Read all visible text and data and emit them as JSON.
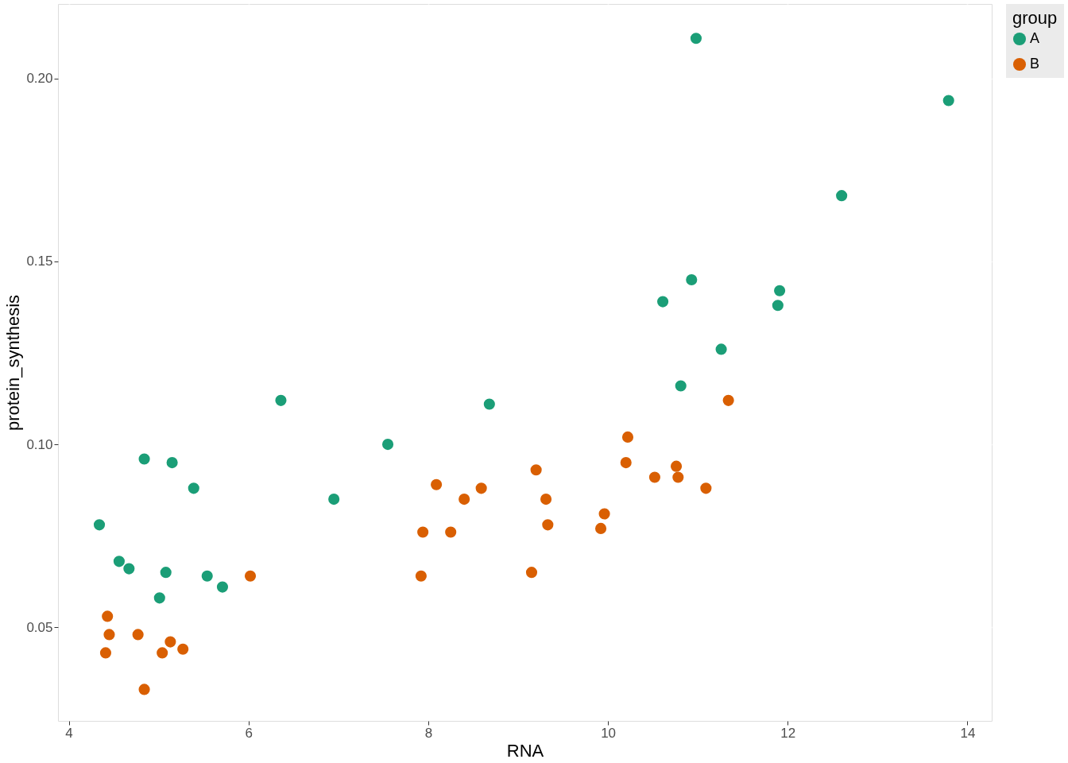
{
  "chart_data": {
    "type": "scatter",
    "xlabel": "RNA",
    "ylabel": "protein_synthesis",
    "legend_title": "group",
    "legend": "right",
    "grid": true,
    "marker": "circle",
    "xlim": [
      3.88,
      14.27
    ],
    "xticks": [
      4,
      6,
      8,
      10,
      12,
      14
    ],
    "ylim": [
      0.0244,
      0.2204
    ],
    "yticks": [
      {
        "value": 0.05,
        "label": "0.05"
      },
      {
        "value": 0.1,
        "label": "0.10"
      },
      {
        "value": 0.15,
        "label": "0.15"
      },
      {
        "value": 0.2,
        "label": "0.20"
      }
    ],
    "series": [
      {
        "name": "A",
        "color": "#1b9e77",
        "x": [
          4.34,
          4.56,
          4.67,
          4.84,
          5.08,
          5.15,
          5.01,
          5.39,
          5.54,
          5.71,
          6.36,
          6.95,
          7.55,
          8.68,
          10.61,
          10.81,
          10.93,
          10.98,
          11.26,
          11.89,
          11.91,
          12.6,
          13.79
        ],
        "values": [
          0.078,
          0.068,
          0.066,
          0.096,
          0.065,
          0.095,
          0.058,
          0.088,
          0.064,
          0.061,
          0.112,
          0.085,
          0.1,
          0.111,
          0.139,
          0.116,
          0.145,
          0.211,
          0.126,
          0.138,
          0.142,
          0.168,
          0.194
        ]
      },
      {
        "name": "B",
        "color": "#d95f02",
        "x": [
          4.43,
          4.45,
          4.41,
          4.77,
          4.84,
          5.04,
          5.13,
          5.27,
          6.02,
          7.92,
          7.94,
          8.09,
          8.25,
          8.4,
          8.59,
          9.15,
          9.2,
          9.31,
          9.33,
          9.92,
          9.96,
          10.2,
          10.22,
          10.52,
          10.76,
          10.78,
          11.09,
          11.34
        ],
        "values": [
          0.053,
          0.048,
          0.043,
          0.048,
          0.033,
          0.043,
          0.046,
          0.044,
          0.064,
          0.064,
          0.076,
          0.089,
          0.076,
          0.085,
          0.088,
          0.065,
          0.093,
          0.085,
          0.078,
          0.077,
          0.081,
          0.095,
          0.102,
          0.091,
          0.094,
          0.091,
          0.088,
          0.112
        ]
      }
    ]
  }
}
